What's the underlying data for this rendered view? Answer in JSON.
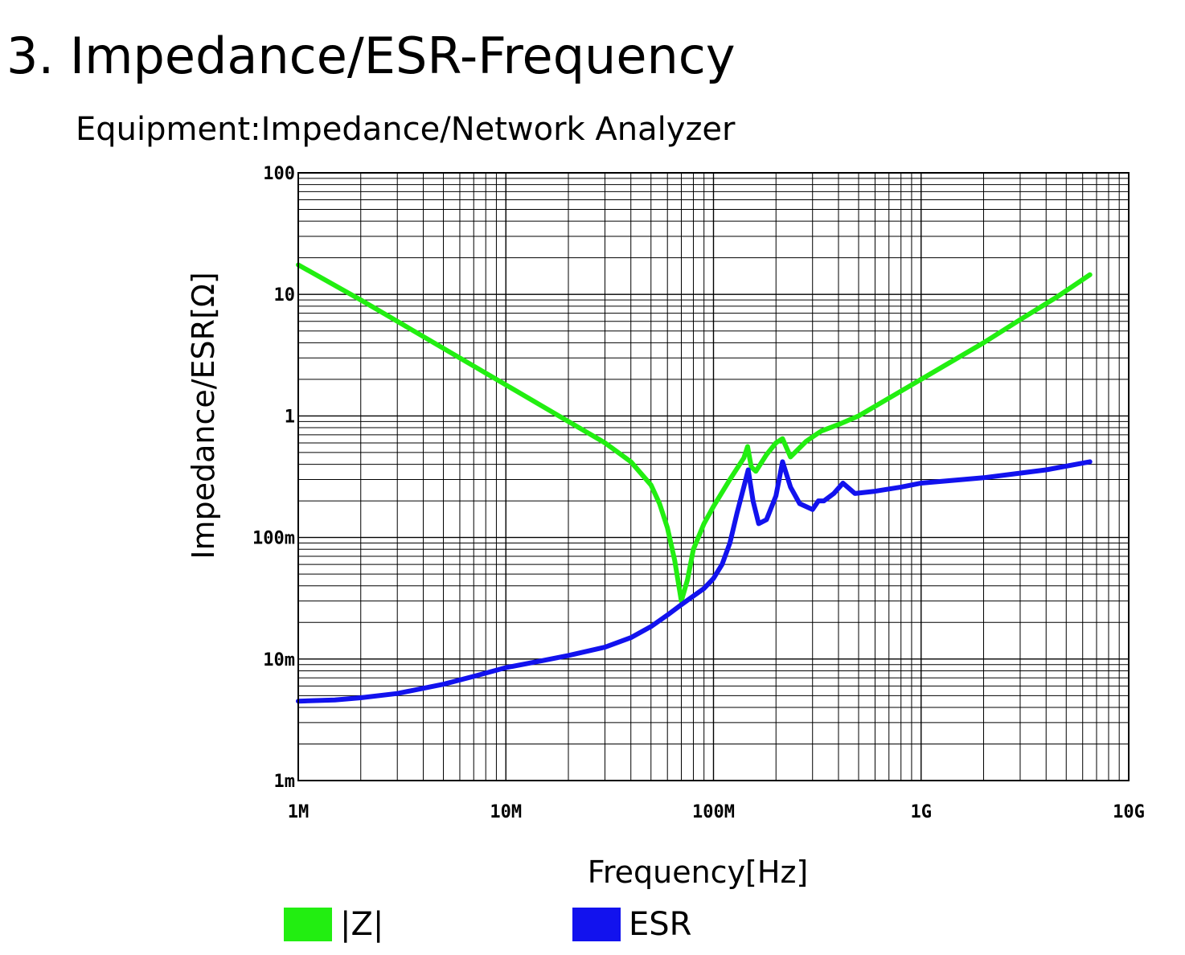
{
  "header": {
    "title": "3. Impedance/ESR-Frequency",
    "subtitle": "Equipment:Impedance/Network Analyzer"
  },
  "chart_data": {
    "type": "line",
    "title": "",
    "xlabel": "Frequency[Hz]",
    "ylabel": "Impedance/ESR[Ω]",
    "x_scale": "log",
    "y_scale": "log",
    "xlim": [
      1000000,
      10000000000
    ],
    "ylim": [
      0.001,
      100
    ],
    "grid": true,
    "legend_placement": "bottom",
    "x_ticks": [
      {
        "value": 1000000,
        "label": "1M"
      },
      {
        "value": 10000000,
        "label": "10M"
      },
      {
        "value": 100000000,
        "label": "100M"
      },
      {
        "value": 1000000000,
        "label": "1G"
      },
      {
        "value": 10000000000,
        "label": "10G"
      }
    ],
    "y_ticks": [
      {
        "value": 100,
        "label": "100"
      },
      {
        "value": 10,
        "label": "10"
      },
      {
        "value": 1,
        "label": "1"
      },
      {
        "value": 0.1,
        "label": "100m"
      },
      {
        "value": 0.01,
        "label": "10m"
      },
      {
        "value": 0.001,
        "label": "1m"
      }
    ],
    "series": [
      {
        "name": "|Z|",
        "color": "#22ee11",
        "x": [
          1000000,
          2000000,
          3000000,
          5000000,
          10000000,
          20000000,
          30000000,
          40000000,
          50000000,
          55000000,
          60000000,
          65000000,
          70000000,
          75000000,
          80000000,
          90000000,
          100000000,
          120000000,
          140000000,
          146000000,
          152000000,
          160000000,
          180000000,
          200000000,
          215000000,
          235000000,
          280000000,
          330000000,
          400000000,
          500000000,
          700000000,
          1000000000,
          2000000000,
          3000000000,
          4500000000,
          6500000000
        ],
        "y": [
          17.5,
          9.0,
          6.0,
          3.6,
          1.8,
          0.9,
          0.6,
          0.42,
          0.27,
          0.19,
          0.12,
          0.065,
          0.03,
          0.045,
          0.08,
          0.13,
          0.18,
          0.3,
          0.45,
          0.56,
          0.38,
          0.35,
          0.48,
          0.6,
          0.65,
          0.46,
          0.62,
          0.75,
          0.85,
          1.0,
          1.4,
          2.0,
          4.0,
          6.2,
          9.5,
          14.5
        ]
      },
      {
        "name": "ESR",
        "color": "#1212ee",
        "x": [
          1000000,
          1500000,
          2000000,
          3000000,
          5000000,
          7000000,
          10000000,
          15000000,
          20000000,
          30000000,
          40000000,
          50000000,
          60000000,
          70000000,
          80000000,
          90000000,
          100000000,
          110000000,
          120000000,
          130000000,
          140000000,
          147000000,
          155000000,
          165000000,
          180000000,
          200000000,
          215000000,
          235000000,
          260000000,
          300000000,
          320000000,
          340000000,
          380000000,
          420000000,
          480000000,
          600000000,
          800000000,
          1000000000,
          2000000000,
          4000000000,
          6500000000
        ],
        "y": [
          0.0045,
          0.0046,
          0.0048,
          0.0052,
          0.0062,
          0.0072,
          0.0085,
          0.0097,
          0.0107,
          0.0125,
          0.015,
          0.0185,
          0.023,
          0.028,
          0.033,
          0.038,
          0.046,
          0.06,
          0.09,
          0.16,
          0.26,
          0.36,
          0.2,
          0.13,
          0.14,
          0.22,
          0.42,
          0.26,
          0.19,
          0.17,
          0.2,
          0.2,
          0.23,
          0.28,
          0.23,
          0.24,
          0.26,
          0.28,
          0.31,
          0.36,
          0.42
        ]
      }
    ]
  },
  "legend": [
    {
      "label": "|Z|",
      "color": "#22ee11"
    },
    {
      "label": "ESR",
      "color": "#1212ee"
    }
  ]
}
